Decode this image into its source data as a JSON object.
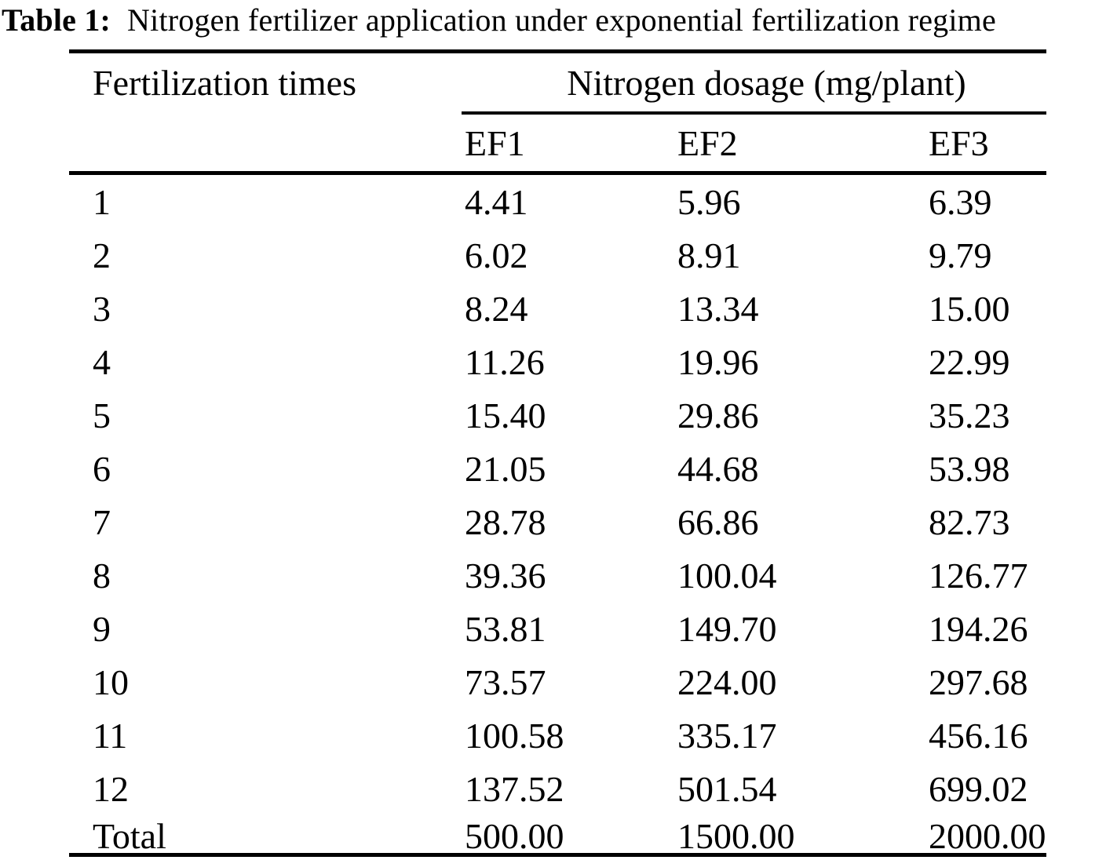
{
  "title": {
    "label": "Table 1:",
    "text": "Nitrogen fertilizer application under exponential fertilization regime"
  },
  "table": {
    "col1_header": "Fertilization times",
    "group_header": "Nitrogen dosage (mg/plant)",
    "sub_headers": [
      "EF1",
      "EF2",
      "EF3"
    ],
    "rows": [
      {
        "time": "1",
        "ef1": "4.41",
        "ef2": "5.96",
        "ef3": "6.39"
      },
      {
        "time": "2",
        "ef1": "6.02",
        "ef2": "8.91",
        "ef3": "9.79"
      },
      {
        "time": "3",
        "ef1": "8.24",
        "ef2": "13.34",
        "ef3": "15.00"
      },
      {
        "time": "4",
        "ef1": "11.26",
        "ef2": "19.96",
        "ef3": "22.99"
      },
      {
        "time": "5",
        "ef1": "15.40",
        "ef2": "29.86",
        "ef3": "35.23"
      },
      {
        "time": "6",
        "ef1": "21.05",
        "ef2": "44.68",
        "ef3": "53.98"
      },
      {
        "time": "7",
        "ef1": "28.78",
        "ef2": "66.86",
        "ef3": "82.73"
      },
      {
        "time": "8",
        "ef1": "39.36",
        "ef2": "100.04",
        "ef3": "126.77"
      },
      {
        "time": "9",
        "ef1": "53.81",
        "ef2": "149.70",
        "ef3": "194.26"
      },
      {
        "time": "10",
        "ef1": "73.57",
        "ef2": "224.00",
        "ef3": "297.68"
      },
      {
        "time": "11",
        "ef1": "100.58",
        "ef2": "335.17",
        "ef3": "456.16"
      },
      {
        "time": "12",
        "ef1": "137.52",
        "ef2": "501.54",
        "ef3": "699.02"
      }
    ],
    "total_row": {
      "label": "Total",
      "ef1": "500.00",
      "ef2": "1500.00",
      "ef3": "2000.00"
    }
  },
  "chart_data": {
    "type": "table",
    "title": "Table 1: Nitrogen fertilizer application under exponential fertilization regime",
    "units": "mg/plant",
    "columns": [
      "Fertilization times",
      "EF1",
      "EF2",
      "EF3"
    ],
    "rows": [
      [
        1,
        4.41,
        5.96,
        6.39
      ],
      [
        2,
        6.02,
        8.91,
        9.79
      ],
      [
        3,
        8.24,
        13.34,
        15.0
      ],
      [
        4,
        11.26,
        19.96,
        22.99
      ],
      [
        5,
        15.4,
        29.86,
        35.23
      ],
      [
        6,
        21.05,
        44.68,
        53.98
      ],
      [
        7,
        28.78,
        66.86,
        82.73
      ],
      [
        8,
        39.36,
        100.04,
        126.77
      ],
      [
        9,
        53.81,
        149.7,
        194.26
      ],
      [
        10,
        73.57,
        224.0,
        297.68
      ],
      [
        11,
        100.58,
        335.17,
        456.16
      ],
      [
        12,
        137.52,
        501.54,
        699.02
      ]
    ],
    "total": [
      "Total",
      500.0,
      1500.0,
      2000.0
    ]
  }
}
